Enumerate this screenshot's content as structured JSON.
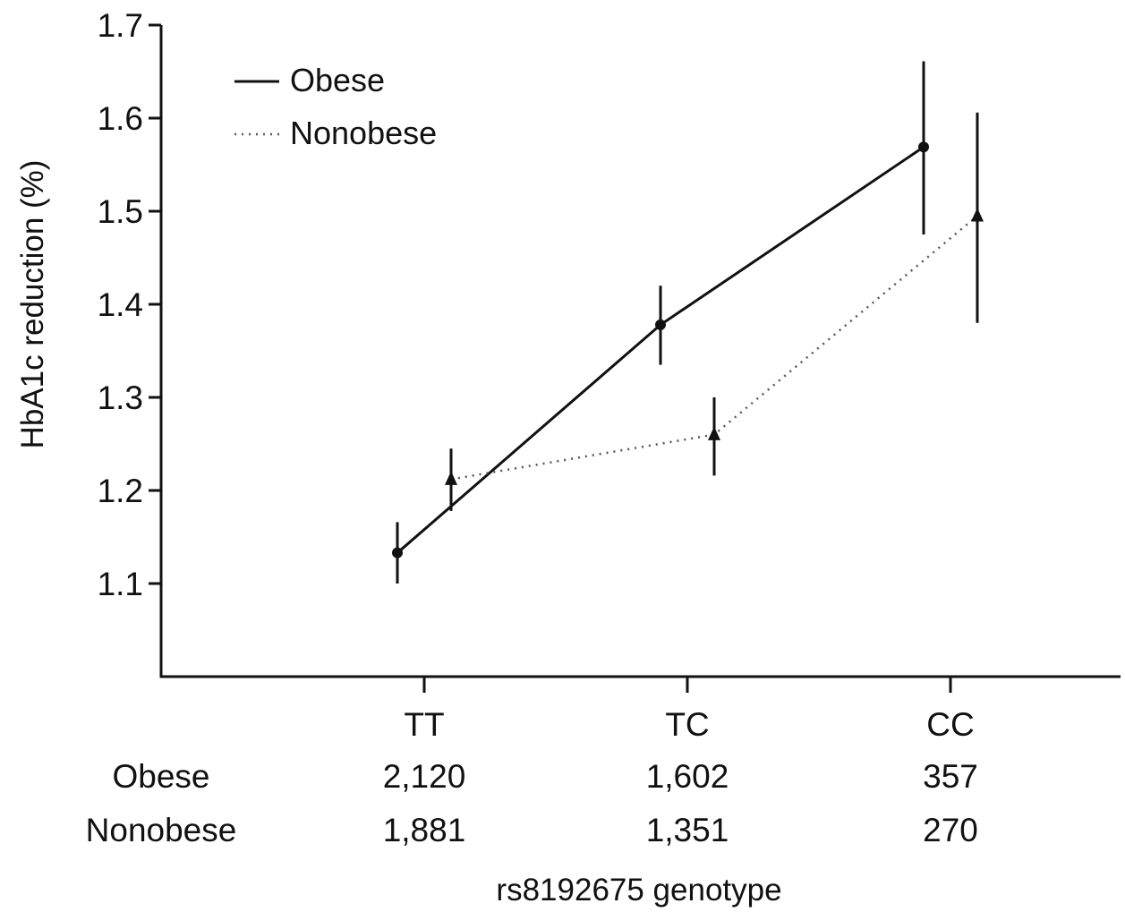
{
  "chart_data": {
    "type": "line",
    "ylabel": "HbA1c reduction (%)",
    "xlabel": "rs8192675 genotype",
    "categories": [
      "TT",
      "TC",
      "CC"
    ],
    "ylim": [
      1.0,
      1.7
    ],
    "yticks": [
      1.1,
      1.2,
      1.3,
      1.4,
      1.5,
      1.6,
      1.7
    ],
    "ytick_labels": [
      "1.1",
      "1.2",
      "1.3",
      "1.4",
      "1.5",
      "1.6",
      "1.7"
    ],
    "grid": false,
    "legend_position": "top-left",
    "series": [
      {
        "name": "Obese",
        "line_style": "solid",
        "marker": "circle",
        "values": [
          1.133,
          1.378,
          1.569
        ],
        "ci_low": [
          1.1,
          1.335,
          1.475
        ],
        "ci_high": [
          1.166,
          1.42,
          1.661
        ]
      },
      {
        "name": "Nonobese",
        "line_style": "dotted",
        "marker": "triangle",
        "values": [
          1.212,
          1.26,
          1.495
        ],
        "ci_low": [
          1.178,
          1.216,
          1.38
        ],
        "ci_high": [
          1.245,
          1.3,
          1.606
        ]
      }
    ],
    "counts_table": {
      "rows": [
        {
          "label": "Obese",
          "values": [
            "2,120",
            "1,602",
            "357"
          ]
        },
        {
          "label": "Nonobese",
          "values": [
            "1,881",
            "1,351",
            "270"
          ]
        }
      ]
    }
  }
}
